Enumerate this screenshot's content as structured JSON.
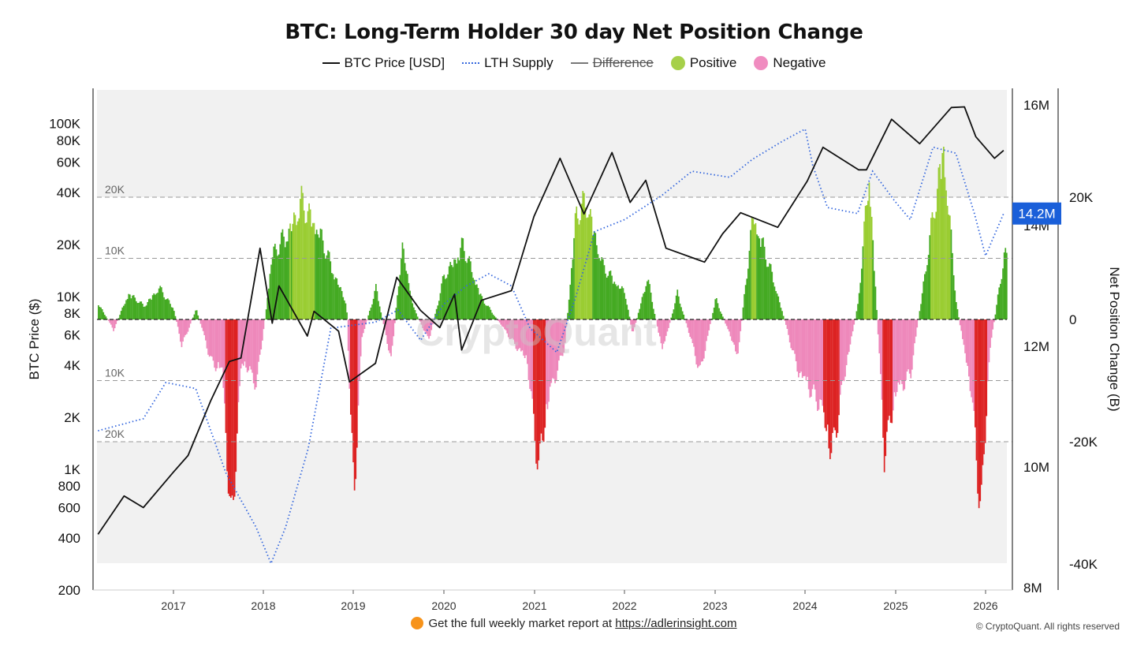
{
  "chart_data": {
    "type": "area",
    "title": "BTC: Long-Term Holder 30 day Net Position Change",
    "legend": [
      {
        "label": "BTC Price [USD]",
        "style": "line",
        "color": "#111111"
      },
      {
        "label": "LTH Supply",
        "style": "dotted",
        "color": "#3366dd"
      },
      {
        "label": "Difference",
        "style": "line",
        "color": "#777777",
        "hidden": true
      },
      {
        "label": "Positive",
        "style": "circle",
        "color": "#a6d04a"
      },
      {
        "label": "Negative",
        "style": "circle",
        "color": "#f08cc0"
      }
    ],
    "xlabel": "",
    "x_ticks": [
      "2017",
      "2018",
      "2019",
      "2020",
      "2021",
      "2022",
      "2023",
      "2024",
      "2025",
      "2026"
    ],
    "y_left": {
      "label": "BTC Price ($)",
      "scale": "log",
      "range": [
        200,
        160000
      ],
      "ticks": [
        {
          "v": 200,
          "label": "200"
        },
        {
          "v": 400,
          "label": "400"
        },
        {
          "v": 600,
          "label": "600"
        },
        {
          "v": 800,
          "label": "800"
        },
        {
          "v": 1000,
          "label": "1K"
        },
        {
          "v": 2000,
          "label": "2K"
        },
        {
          "v": 4000,
          "label": "4K"
        },
        {
          "v": 6000,
          "label": "6K"
        },
        {
          "v": 8000,
          "label": "8K"
        },
        {
          "v": 10000,
          "label": "10K"
        },
        {
          "v": 20000,
          "label": "20K"
        },
        {
          "v": 40000,
          "label": "40K"
        },
        {
          "v": 60000,
          "label": "60K"
        },
        {
          "v": 80000,
          "label": "80K"
        },
        {
          "v": 100000,
          "label": "100K"
        }
      ]
    },
    "y_right_supply": {
      "range": [
        8000000,
        16000000
      ],
      "ticks": [
        {
          "v": 8000000,
          "label": "8M"
        },
        {
          "v": 10000000,
          "label": "10M"
        },
        {
          "v": 12000000,
          "label": "12M"
        },
        {
          "v": 14000000,
          "label": "14M"
        },
        {
          "v": 16000000,
          "label": "16M"
        }
      ],
      "current_label": "14.2M"
    },
    "y_right_change": {
      "label": "Net Position Change (B)",
      "range": [
        -40000,
        20000
      ],
      "ticks": [
        {
          "v": 20000,
          "label": "20K"
        },
        {
          "v": 0,
          "label": "0"
        },
        {
          "v": -20000,
          "label": "-20K"
        },
        {
          "v": -40000,
          "label": "-40K"
        }
      ],
      "reference_lines": [
        {
          "v": 20000,
          "label": "20K"
        },
        {
          "v": 10000,
          "label": "10K"
        },
        {
          "v": -10000,
          "label": "10K"
        },
        {
          "v": -20000,
          "label": "-20K",
          "text": "20K"
        }
      ]
    },
    "price_series": {
      "name": "BTC Price [USD]",
      "points": [
        [
          "2016-03-01",
          420
        ],
        [
          "2016-06-15",
          700
        ],
        [
          "2016-09-01",
          600
        ],
        [
          "2016-12-31",
          960
        ],
        [
          "2017-03-01",
          1200
        ],
        [
          "2017-06-01",
          2500
        ],
        [
          "2017-08-15",
          4200
        ],
        [
          "2017-10-01",
          4400
        ],
        [
          "2017-12-17",
          19000
        ],
        [
          "2018-02-06",
          7000
        ],
        [
          "2018-03-05",
          11500
        ],
        [
          "2018-06-28",
          5900
        ],
        [
          "2018-07-25",
          8200
        ],
        [
          "2018-11-01",
          6300
        ],
        [
          "2018-12-15",
          3200
        ],
        [
          "2019-04-01",
          4100
        ],
        [
          "2019-06-26",
          12900
        ],
        [
          "2019-09-30",
          8300
        ],
        [
          "2019-12-17",
          6600
        ],
        [
          "2020-02-13",
          10300
        ],
        [
          "2020-03-13",
          4900
        ],
        [
          "2020-06-01",
          9500
        ],
        [
          "2020-10-01",
          10800
        ],
        [
          "2020-12-31",
          29000
        ],
        [
          "2021-04-14",
          63000
        ],
        [
          "2021-07-20",
          30000
        ],
        [
          "2021-11-10",
          68000
        ],
        [
          "2022-01-24",
          35000
        ],
        [
          "2022-03-28",
          47000
        ],
        [
          "2022-06-18",
          19000
        ],
        [
          "2022-11-21",
          15800
        ],
        [
          "2023-01-31",
          23000
        ],
        [
          "2023-04-14",
          30500
        ],
        [
          "2023-09-11",
          25100
        ],
        [
          "2024-01-10",
          46500
        ],
        [
          "2024-03-14",
          73000
        ],
        [
          "2024-08-05",
          54000
        ],
        [
          "2024-09-06",
          54000
        ],
        [
          "2024-12-17",
          106000
        ],
        [
          "2025-04-08",
          76500
        ],
        [
          "2025-08-14",
          124000
        ],
        [
          "2025-10-06",
          125000
        ],
        [
          "2025-11-21",
          84000
        ],
        [
          "2026-02-06",
          63000
        ],
        [
          "2026-03-15",
          70000
        ]
      ]
    },
    "supply_series": {
      "name": "LTH Supply",
      "points": [
        [
          "2016-03-01",
          10600000
        ],
        [
          "2016-09-01",
          10800000
        ],
        [
          "2016-12-01",
          11400000
        ],
        [
          "2017-04-01",
          11300000
        ],
        [
          "2017-08-01",
          9900000
        ],
        [
          "2017-12-01",
          9000000
        ],
        [
          "2018-02-01",
          8400000
        ],
        [
          "2018-04-01",
          9000000
        ],
        [
          "2018-07-01",
          10300000
        ],
        [
          "2018-10-01",
          12300000
        ],
        [
          "2019-04-01",
          12400000
        ],
        [
          "2019-07-01",
          12600000
        ],
        [
          "2019-10-01",
          12100000
        ],
        [
          "2020-01-01",
          12700000
        ],
        [
          "2020-04-01",
          13000000
        ],
        [
          "2020-07-01",
          13200000
        ],
        [
          "2020-10-01",
          13000000
        ],
        [
          "2020-12-15",
          12300000
        ],
        [
          "2021-04-01",
          11900000
        ],
        [
          "2021-06-15",
          12800000
        ],
        [
          "2021-09-01",
          13900000
        ],
        [
          "2021-12-31",
          14100000
        ],
        [
          "2022-06-01",
          14500000
        ],
        [
          "2022-10-01",
          14900000
        ],
        [
          "2023-03-01",
          14800000
        ],
        [
          "2023-06-01",
          15100000
        ],
        [
          "2023-10-01",
          15400000
        ],
        [
          "2023-12-31",
          15600000
        ],
        [
          "2024-02-01",
          15000000
        ],
        [
          "2024-04-01",
          14300000
        ],
        [
          "2024-08-01",
          14200000
        ],
        [
          "2024-10-01",
          14900000
        ],
        [
          "2024-12-31",
          14400000
        ],
        [
          "2025-03-01",
          14100000
        ],
        [
          "2025-06-01",
          15300000
        ],
        [
          "2025-09-01",
          15200000
        ],
        [
          "2025-11-15",
          14200000
        ],
        [
          "2026-01-01",
          13500000
        ],
        [
          "2026-03-15",
          14200000
        ]
      ]
    },
    "net_position_change": {
      "name": "Net Position Change",
      "positive_color": "#44aa22",
      "positive_highlight_color": "#9acd32",
      "negative_color": "#ee88bb",
      "negative_highlight_color": "#dd2222",
      "points": [
        [
          "2016-03-01",
          3000
        ],
        [
          "2016-05-01",
          -2000
        ],
        [
          "2016-07-01",
          5000
        ],
        [
          "2016-09-01",
          2500
        ],
        [
          "2016-11-01",
          6000
        ],
        [
          "2016-12-31",
          2000
        ],
        [
          "2017-02-01",
          -5000
        ],
        [
          "2017-04-01",
          2000
        ],
        [
          "2017-06-01",
          -8000
        ],
        [
          "2017-07-15",
          -10000
        ],
        [
          "2017-08-20",
          -40000
        ],
        [
          "2017-10-01",
          -8000
        ],
        [
          "2017-12-01",
          -12000
        ],
        [
          "2018-01-10",
          2000
        ],
        [
          "2018-02-01",
          12000
        ],
        [
          "2018-04-01",
          16000
        ],
        [
          "2018-06-01",
          22000
        ],
        [
          "2018-08-01",
          18000
        ],
        [
          "2018-10-01",
          10000
        ],
        [
          "2018-12-01",
          3000
        ],
        [
          "2018-12-31",
          -35000
        ],
        [
          "2019-02-01",
          -4000
        ],
        [
          "2019-04-01",
          6000
        ],
        [
          "2019-06-01",
          -8000
        ],
        [
          "2019-07-15",
          14000
        ],
        [
          "2019-09-01",
          2000
        ],
        [
          "2019-11-01",
          -4000
        ],
        [
          "2019-12-31",
          8000
        ],
        [
          "2020-03-15",
          14000
        ],
        [
          "2020-06-01",
          4000
        ],
        [
          "2020-09-01",
          -2000
        ],
        [
          "2020-12-01",
          -8000
        ],
        [
          "2021-01-15",
          -28000
        ],
        [
          "2021-03-01",
          -14000
        ],
        [
          "2021-05-01",
          -5000
        ],
        [
          "2021-06-15",
          20000
        ],
        [
          "2021-08-01",
          22000
        ],
        [
          "2021-10-01",
          10000
        ],
        [
          "2021-12-31",
          5000
        ],
        [
          "2022-02-01",
          -3000
        ],
        [
          "2022-04-01",
          8000
        ],
        [
          "2022-06-01",
          -6000
        ],
        [
          "2022-08-01",
          5000
        ],
        [
          "2022-11-01",
          -10000
        ],
        [
          "2023-01-01",
          4000
        ],
        [
          "2023-04-01",
          -7000
        ],
        [
          "2023-06-01",
          20000
        ],
        [
          "2023-09-01",
          6000
        ],
        [
          "2023-12-01",
          -10000
        ],
        [
          "2024-03-01",
          -16000
        ],
        [
          "2024-04-15",
          -26000
        ],
        [
          "2024-06-01",
          -12000
        ],
        [
          "2024-08-01",
          3000
        ],
        [
          "2024-09-15",
          28000
        ],
        [
          "2024-11-15",
          -25000
        ],
        [
          "2025-01-01",
          -14000
        ],
        [
          "2025-03-01",
          -10000
        ],
        [
          "2025-05-01",
          10000
        ],
        [
          "2025-07-10",
          33000
        ],
        [
          "2025-09-01",
          3000
        ],
        [
          "2025-11-01",
          -14000
        ],
        [
          "2025-12-10",
          -37000
        ],
        [
          "2026-01-15",
          -6000
        ],
        [
          "2026-03-15",
          12000
        ]
      ]
    },
    "grid": true,
    "watermark": "CryptoQuant"
  },
  "footer": {
    "text": "Get the full weekly market report at ",
    "link": "https://adlerinsight.com",
    "copyright": "© CryptoQuant. All rights reserved"
  },
  "colors": {
    "accent": "#1a5fd9"
  }
}
